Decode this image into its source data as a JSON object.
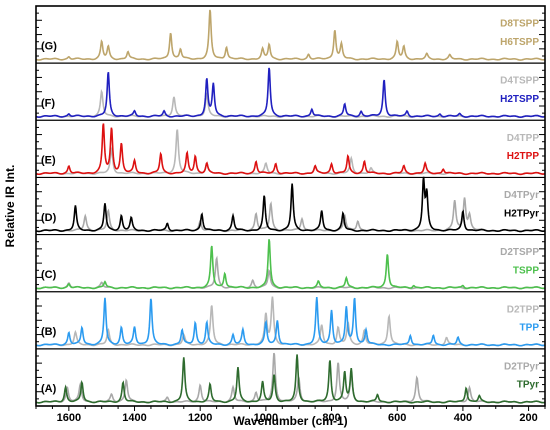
{
  "chart_data": {
    "type": "line",
    "xlabel": "Wavenumber (cm-1)",
    "ylabel": "Relative IR Int.",
    "xlim": [
      1700,
      150
    ],
    "x_ticks": [
      "1600",
      "1400",
      "1200",
      "1000",
      "800",
      "600",
      "400",
      "200"
    ],
    "x_tick_values": [
      1600,
      1400,
      1200,
      1000,
      800,
      600,
      400,
      200
    ],
    "panels": [
      {
        "label": "(A)",
        "light": {
          "name": "D2TPyr",
          "color": "#a9a9a9",
          "peaks": [
            [
              1605,
              0.3
            ],
            [
              1565,
              0.35
            ],
            [
              1470,
              0.15
            ],
            [
              1425,
              0.45
            ],
            [
              1300,
              0.1
            ],
            [
              1200,
              0.35
            ],
            [
              1100,
              0.3
            ],
            [
              1030,
              0.2
            ],
            [
              975,
              1.0
            ],
            [
              900,
              0.5
            ],
            [
              780,
              0.8
            ],
            [
              740,
              0.55
            ],
            [
              540,
              0.5
            ],
            [
              380,
              0.3
            ]
          ]
        },
        "dark": {
          "name": "TPyr",
          "color": "#2e6b2e",
          "peaks": [
            [
              1610,
              0.3
            ],
            [
              1560,
              0.4
            ],
            [
              1435,
              0.4
            ],
            [
              1250,
              0.9
            ],
            [
              1170,
              0.35
            ],
            [
              1085,
              0.7
            ],
            [
              1010,
              0.4
            ],
            [
              975,
              0.55
            ],
            [
              905,
              0.95
            ],
            [
              805,
              0.85
            ],
            [
              760,
              0.6
            ],
            [
              740,
              0.65
            ],
            [
              660,
              0.15
            ],
            [
              390,
              0.3
            ],
            [
              350,
              0.12
            ]
          ]
        }
      },
      {
        "label": "(B)",
        "light": {
          "name": "D2TPP",
          "color": "#b8b8b8",
          "peaks": [
            [
              1580,
              0.25
            ],
            [
              1480,
              0.3
            ],
            [
              1250,
              0.2
            ],
            [
              1165,
              0.8
            ],
            [
              1000,
              0.6
            ],
            [
              980,
              0.95
            ],
            [
              830,
              0.4
            ],
            [
              780,
              0.35
            ],
            [
              750,
              0.45
            ],
            [
              700,
              0.3
            ],
            [
              625,
              0.6
            ],
            [
              450,
              0.15
            ]
          ]
        },
        "dark": {
          "name": "TPP",
          "color": "#2b9bf0",
          "peaks": [
            [
              1600,
              0.25
            ],
            [
              1560,
              0.35
            ],
            [
              1490,
              0.95
            ],
            [
              1440,
              0.35
            ],
            [
              1400,
              0.35
            ],
            [
              1350,
              0.95
            ],
            [
              1255,
              0.3
            ],
            [
              1215,
              0.45
            ],
            [
              1180,
              0.45
            ],
            [
              1100,
              0.2
            ],
            [
              1070,
              0.3
            ],
            [
              1000,
              0.45
            ],
            [
              965,
              0.5
            ],
            [
              845,
              0.95
            ],
            [
              800,
              0.7
            ],
            [
              755,
              0.75
            ],
            [
              730,
              0.95
            ],
            [
              695,
              0.3
            ],
            [
              560,
              0.2
            ],
            [
              490,
              0.2
            ],
            [
              415,
              0.15
            ]
          ]
        }
      },
      {
        "label": "(C)",
        "light": {
          "name": "D2TSPP",
          "color": "#a9a9a9",
          "peaks": [
            [
              1600,
              0.1
            ],
            [
              1500,
              0.1
            ],
            [
              1150,
              0.6
            ],
            [
              990,
              0.35
            ],
            [
              1040,
              0.15
            ]
          ]
        },
        "dark": {
          "name": "TSPP",
          "color": "#4dc04d",
          "peaks": [
            [
              1600,
              0.08
            ],
            [
              1490,
              0.12
            ],
            [
              1165,
              0.85
            ],
            [
              1125,
              0.3
            ],
            [
              990,
              1.0
            ],
            [
              840,
              0.12
            ],
            [
              755,
              0.2
            ],
            [
              630,
              0.7
            ],
            [
              550,
              0.05
            ],
            [
              400,
              0.05
            ]
          ]
        }
      },
      {
        "label": "(D)",
        "light": {
          "name": "D4TPyr",
          "color": "#a9a9a9",
          "peaks": [
            [
              1550,
              0.3
            ],
            [
              1480,
              0.4
            ],
            [
              1200,
              0.2
            ],
            [
              1030,
              0.35
            ],
            [
              985,
              0.55
            ],
            [
              890,
              0.25
            ],
            [
              760,
              0.3
            ],
            [
              720,
              0.2
            ],
            [
              425,
              0.6
            ],
            [
              395,
              0.65
            ],
            [
              380,
              0.3
            ]
          ]
        },
        "dark": {
          "name": "H2TPyr",
          "color": "#000000",
          "peaks": [
            [
              1580,
              0.5
            ],
            [
              1490,
              0.55
            ],
            [
              1440,
              0.3
            ],
            [
              1410,
              0.25
            ],
            [
              1300,
              0.15
            ],
            [
              1195,
              0.35
            ],
            [
              1100,
              0.3
            ],
            [
              1005,
              0.7
            ],
            [
              920,
              0.95
            ],
            [
              830,
              0.4
            ],
            [
              765,
              0.35
            ],
            [
              520,
              1.0
            ],
            [
              510,
              0.7
            ],
            [
              400,
              0.4
            ]
          ]
        }
      },
      {
        "label": "(E)",
        "light": {
          "name": "D4TPP",
          "color": "#b8b8b8",
          "peaks": [
            [
              1470,
              0.5
            ],
            [
              1270,
              0.9
            ],
            [
              1180,
              0.2
            ],
            [
              1000,
              0.2
            ],
            [
              850,
              0.15
            ],
            [
              740,
              0.3
            ],
            [
              680,
              0.1
            ]
          ]
        },
        "dark": {
          "name": "H2TPP",
          "color": "#dd1111",
          "peaks": [
            [
              1600,
              0.15
            ],
            [
              1495,
              1.0
            ],
            [
              1470,
              0.9
            ],
            [
              1440,
              0.6
            ],
            [
              1400,
              0.25
            ],
            [
              1320,
              0.4
            ],
            [
              1240,
              0.4
            ],
            [
              1215,
              0.35
            ],
            [
              1180,
              0.2
            ],
            [
              1030,
              0.25
            ],
            [
              970,
              0.2
            ],
            [
              850,
              0.15
            ],
            [
              800,
              0.2
            ],
            [
              750,
              0.35
            ],
            [
              700,
              0.25
            ],
            [
              580,
              0.15
            ],
            [
              515,
              0.2
            ],
            [
              460,
              0.1
            ]
          ]
        }
      },
      {
        "label": "(F)",
        "light": {
          "name": "D4TSPP",
          "color": "#b8b8b8",
          "peaks": [
            [
              1500,
              0.5
            ],
            [
              1280,
              0.4
            ],
            [
              1180,
              0.45
            ]
          ]
        },
        "dark": {
          "name": "H2TSPP",
          "color": "#2020c0",
          "peaks": [
            [
              1600,
              0.05
            ],
            [
              1480,
              0.9
            ],
            [
              1400,
              0.1
            ],
            [
              1310,
              0.1
            ],
            [
              1180,
              0.75
            ],
            [
              1160,
              0.65
            ],
            [
              990,
              1.0
            ],
            [
              860,
              0.15
            ],
            [
              760,
              0.25
            ],
            [
              710,
              0.1
            ],
            [
              640,
              0.75
            ],
            [
              570,
              0.1
            ],
            [
              470,
              0.05
            ],
            [
              410,
              0.05
            ]
          ]
        }
      },
      {
        "label": "(G)",
        "light": {
          "name": "D8TSPP",
          "color": "#bda56b",
          "peaks": []
        },
        "dark": {
          "name": "H6TSPP",
          "color": "#bda56b",
          "peaks": [
            [
              1600,
              0.05
            ],
            [
              1500,
              0.35
            ],
            [
              1480,
              0.25
            ],
            [
              1420,
              0.15
            ],
            [
              1290,
              0.55
            ],
            [
              1260,
              0.2
            ],
            [
              1170,
              1.0
            ],
            [
              1120,
              0.25
            ],
            [
              1010,
              0.2
            ],
            [
              990,
              0.3
            ],
            [
              870,
              0.1
            ],
            [
              790,
              0.6
            ],
            [
              770,
              0.3
            ],
            [
              600,
              0.35
            ],
            [
              580,
              0.25
            ],
            [
              510,
              0.1
            ],
            [
              440,
              0.08
            ]
          ]
        }
      }
    ]
  }
}
